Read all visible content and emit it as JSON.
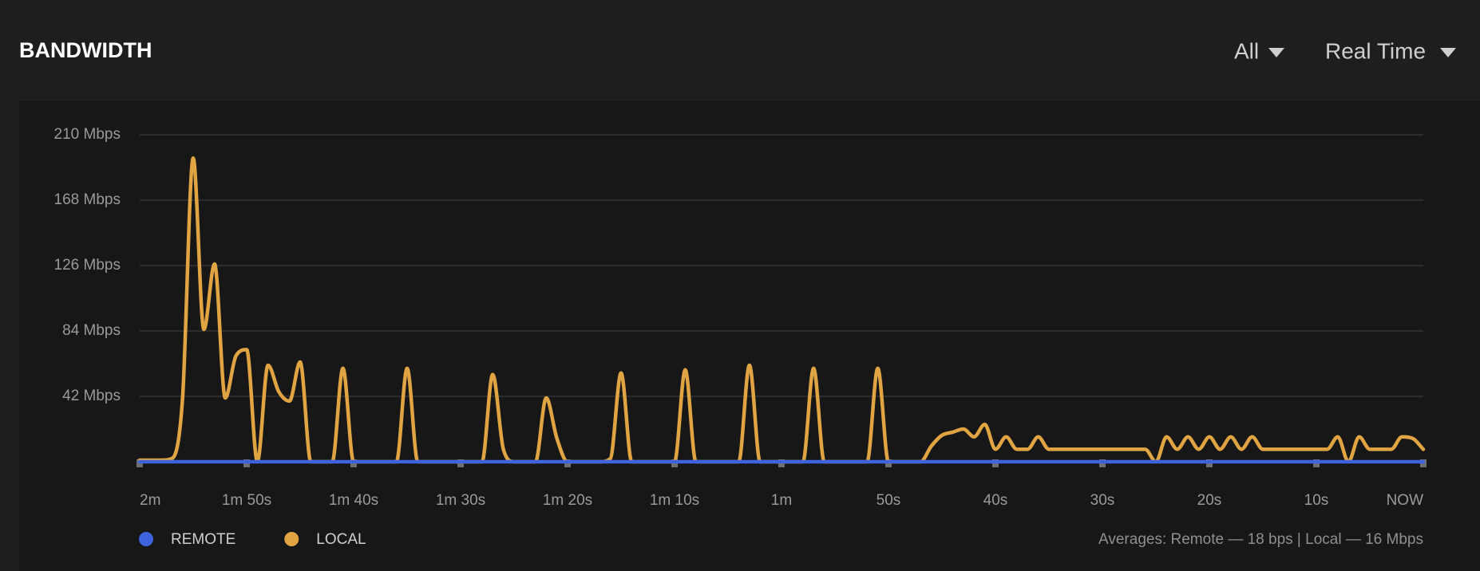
{
  "header": {
    "title": "BANDWIDTH",
    "filter": "All",
    "range": "Real Time"
  },
  "chart_data": {
    "type": "line",
    "x": [
      -120,
      -119,
      -118,
      -117,
      -116,
      -115,
      -114,
      -113,
      -112,
      -111,
      -110,
      -109,
      -108,
      -107,
      -106,
      -105,
      -104,
      -103,
      -102,
      -101,
      -100,
      -99,
      -98,
      -97,
      -96,
      -95,
      -94,
      -93,
      -92,
      -91,
      -90,
      -89,
      -88,
      -87,
      -86,
      -85,
      -84,
      -83,
      -82,
      -81,
      -80,
      -79,
      -78,
      -77,
      -76,
      -75,
      -74,
      -73,
      -72,
      -71,
      -70,
      -69,
      -68,
      -67,
      -66,
      -65,
      -64,
      -63,
      -62,
      -61,
      -60,
      -59,
      -58,
      -57,
      -56,
      -55,
      -54,
      -53,
      -52,
      -51,
      -50,
      -49,
      -48,
      -47,
      -46,
      -45,
      -44,
      -43,
      -42,
      -41,
      -40,
      -39,
      -38,
      -37,
      -36,
      -35,
      -34,
      -33,
      -32,
      -31,
      -30,
      -29,
      -28,
      -27,
      -26,
      -25,
      -24,
      -23,
      -22,
      -21,
      -20,
      -19,
      -18,
      -17,
      -16,
      -15,
      -14,
      -13,
      -12,
      -11,
      -10,
      -9,
      -8,
      -7,
      -6,
      -5,
      -4,
      -3,
      -2,
      -1,
      0
    ],
    "series": [
      {
        "name": "LOCAL",
        "color": "#e0a442",
        "values": [
          1,
          1,
          1,
          2,
          40,
          195,
          85,
          127,
          41,
          68,
          72,
          0,
          62,
          45,
          39,
          64,
          0,
          0,
          0,
          60,
          0,
          0,
          0,
          0,
          0,
          60,
          0,
          0,
          0,
          0,
          0,
          0,
          0,
          56,
          8,
          0,
          0,
          0,
          41,
          15,
          0,
          0,
          0,
          0,
          2,
          57,
          0,
          0,
          0,
          0,
          0,
          59,
          0,
          0,
          0,
          0,
          0,
          62,
          0,
          0,
          0,
          0,
          0,
          60,
          0,
          0,
          0,
          0,
          0,
          60,
          0,
          0,
          0,
          0,
          10,
          17,
          19,
          21,
          16,
          24,
          8,
          16,
          8,
          8,
          16,
          8,
          8,
          8,
          8,
          8,
          8,
          8,
          8,
          8,
          8,
          0,
          16,
          8,
          16,
          8,
          16,
          8,
          16,
          8,
          16,
          8,
          8,
          8,
          8,
          8,
          8,
          8,
          16,
          0,
          16,
          8,
          8,
          8,
          16,
          15,
          8
        ]
      },
      {
        "name": "REMOTE",
        "color": "#3d63dd",
        "values": [
          0,
          0,
          0,
          0,
          0,
          0,
          0,
          0,
          0,
          0,
          0,
          0,
          0,
          0,
          0,
          0,
          0,
          0,
          0,
          0,
          0,
          0,
          0,
          0,
          0,
          0,
          0,
          0,
          0,
          0,
          0,
          0,
          0,
          0,
          0,
          0,
          0,
          0,
          0,
          0,
          0,
          0,
          0,
          0,
          0,
          0,
          0,
          0,
          0,
          0,
          0,
          0,
          0,
          0,
          0,
          0,
          0,
          0,
          0,
          0,
          0,
          0,
          0,
          0,
          0,
          0,
          0,
          0,
          0,
          0,
          0,
          0,
          0,
          0,
          0,
          0,
          0,
          0,
          0,
          0,
          0,
          0,
          0,
          0,
          0,
          0,
          0,
          0,
          0,
          0,
          0,
          0,
          0,
          0,
          0,
          0,
          0,
          0,
          0,
          0,
          0,
          0,
          0,
          0,
          0,
          0,
          0,
          0,
          0,
          0,
          0,
          0,
          0,
          0,
          0,
          0,
          0,
          0,
          0,
          0,
          0
        ]
      }
    ],
    "xlim": [
      -120,
      0
    ],
    "xticks": [
      {
        "value": -120,
        "label": "2m"
      },
      {
        "value": -110,
        "label": "1m 50s"
      },
      {
        "value": -100,
        "label": "1m 40s"
      },
      {
        "value": -90,
        "label": "1m 30s"
      },
      {
        "value": -80,
        "label": "1m 20s"
      },
      {
        "value": -70,
        "label": "1m 10s"
      },
      {
        "value": -60,
        "label": "1m"
      },
      {
        "value": -50,
        "label": "50s"
      },
      {
        "value": -40,
        "label": "40s"
      },
      {
        "value": -30,
        "label": "30s"
      },
      {
        "value": -20,
        "label": "20s"
      },
      {
        "value": -10,
        "label": "10s"
      },
      {
        "value": 0,
        "label": "NOW"
      }
    ],
    "ylim": [
      0,
      210
    ],
    "yticks": [
      {
        "value": 42,
        "label": "42 Mbps"
      },
      {
        "value": 84,
        "label": "84 Mbps"
      },
      {
        "value": 126,
        "label": "126 Mbps"
      },
      {
        "value": 168,
        "label": "168 Mbps"
      },
      {
        "value": 210,
        "label": "210 Mbps"
      }
    ],
    "grid": true
  },
  "footer": {
    "averages": "Averages: Remote — 18 bps | Local — 16 Mbps"
  }
}
